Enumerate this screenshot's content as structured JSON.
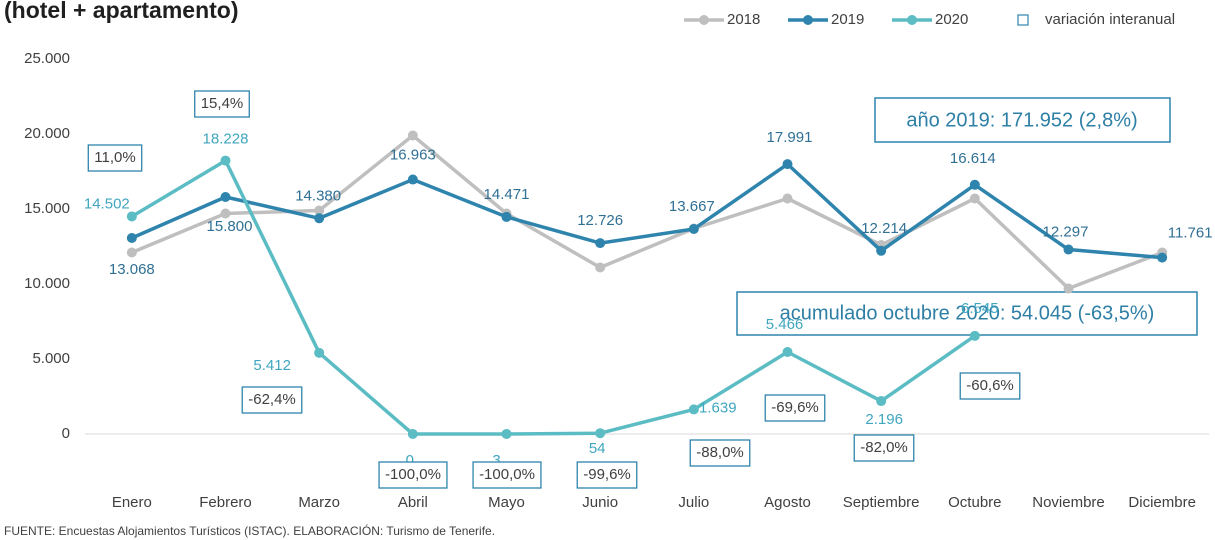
{
  "chart_data": {
    "type": "line",
    "title": "(hotel + apartamento)",
    "source": "FUENTE: Encuestas Alojamientos Turísticos (ISTAC). ELABORACIÓN: Turismo de Tenerife.",
    "categories": [
      "Enero",
      "Febrero",
      "Marzo",
      "Abril",
      "Mayo",
      "Junio",
      "Julio",
      "Agosto",
      "Septiembre",
      "Octubre",
      "Noviembre",
      "Diciembre"
    ],
    "series": [
      {
        "name": "2018",
        "color": "#bfbfbf",
        "values": [
          12100,
          14700,
          14900,
          19900,
          14700,
          11100,
          13700,
          15700,
          12600,
          15700,
          9700,
          12100
        ]
      },
      {
        "name": "2019",
        "color": "#2e84ad",
        "values": [
          13068,
          15800,
          14380,
          16963,
          14471,
          12726,
          13667,
          17991,
          12214,
          16614,
          12297,
          11761
        ],
        "value_labels": [
          "13.068",
          "15.800",
          "14.380",
          "16.963",
          "14.471",
          "12.726",
          "13.667",
          "17.991",
          "12.214",
          "16.614",
          "12.297",
          "11.761"
        ]
      },
      {
        "name": "2020",
        "color": "#5bbcc4",
        "values": [
          14502,
          18228,
          5412,
          0,
          3,
          54,
          1639,
          5466,
          2196,
          6545,
          null,
          null
        ],
        "value_labels": [
          "14.502",
          "18.228",
          "5.412",
          "0",
          "3",
          "54",
          "1.639",
          "5.466",
          "2.196",
          "6.545",
          null,
          null
        ]
      }
    ],
    "variation_legend": "variación interanual",
    "variation_labels": [
      "11,0%",
      "15,4%",
      "-62,4%",
      "-100,0%",
      "-100,0%",
      "-99,6%",
      "-88,0%",
      "-69,6%",
      "-82,0%",
      "-60,6%"
    ],
    "summary_2019": "año 2019: 171.952 (2,8%)",
    "summary_2020": "acumulado octubre 2020: 54.045 (-63,5%)",
    "ylim": [
      0,
      25000
    ],
    "yticks": [
      0,
      {
        "value": 5000,
        "label": "5.000"
      },
      {
        "value": 10000,
        "label": "10.000"
      },
      {
        "value": 15000,
        "label": "15.000"
      },
      {
        "value": 20000,
        "label": "20.000"
      },
      {
        "value": 25000,
        "label": "25.000"
      }
    ],
    "grid": false
  }
}
